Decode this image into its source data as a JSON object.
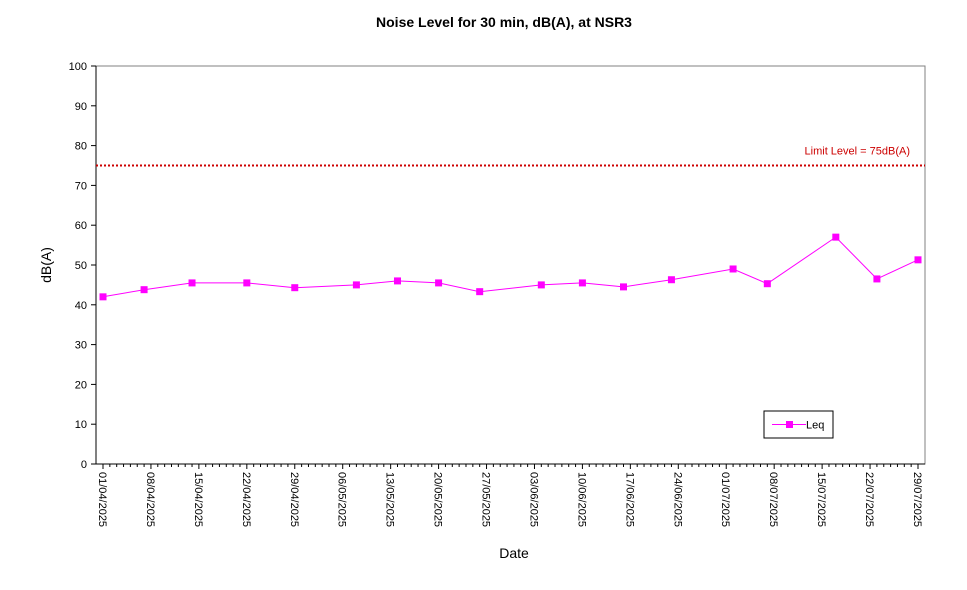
{
  "chart_data": {
    "type": "line",
    "title": "Noise Level for 30 min, dB(A), at NSR3",
    "xlabel": "Date",
    "ylabel": "dB(A)",
    "ylim": [
      0,
      100
    ],
    "yticks": [
      0,
      10,
      20,
      30,
      40,
      50,
      60,
      70,
      80,
      90,
      100
    ],
    "xlim": [
      "2025-04-01",
      "2025-07-29"
    ],
    "xtick_labels": [
      "01/04/2025",
      "08/04/2025",
      "15/04/2025",
      "22/04/2025",
      "29/04/2025",
      "06/05/2025",
      "13/05/2025",
      "20/05/2025",
      "27/05/2025",
      "03/06/2025",
      "10/06/2025",
      "17/06/2025",
      "24/06/2025",
      "01/07/2025",
      "08/07/2025",
      "15/07/2025",
      "22/07/2025",
      "29/07/2025"
    ],
    "grid": false,
    "legend_position": "bottom-right",
    "series": [
      {
        "name": "Leq",
        "color": "#FF00FF",
        "marker": "square",
        "x": [
          "2025-04-01",
          "2025-04-07",
          "2025-04-14",
          "2025-04-22",
          "2025-04-29",
          "2025-05-08",
          "2025-05-14",
          "2025-05-20",
          "2025-05-26",
          "2025-06-04",
          "2025-06-10",
          "2025-06-16",
          "2025-06-23",
          "2025-07-02",
          "2025-07-07",
          "2025-07-17",
          "2025-07-23",
          "2025-07-29"
        ],
        "values": [
          42.0,
          43.8,
          45.5,
          45.5,
          44.3,
          45.0,
          46.0,
          45.5,
          43.3,
          45.0,
          45.5,
          44.5,
          46.3,
          49.0,
          45.3,
          57.0,
          46.5,
          51.3
        ]
      }
    ],
    "reference_lines": [
      {
        "label": "Limit Level  = 75dB(A)",
        "value": 75,
        "color": "#CC0000",
        "style": "dotted"
      }
    ]
  }
}
